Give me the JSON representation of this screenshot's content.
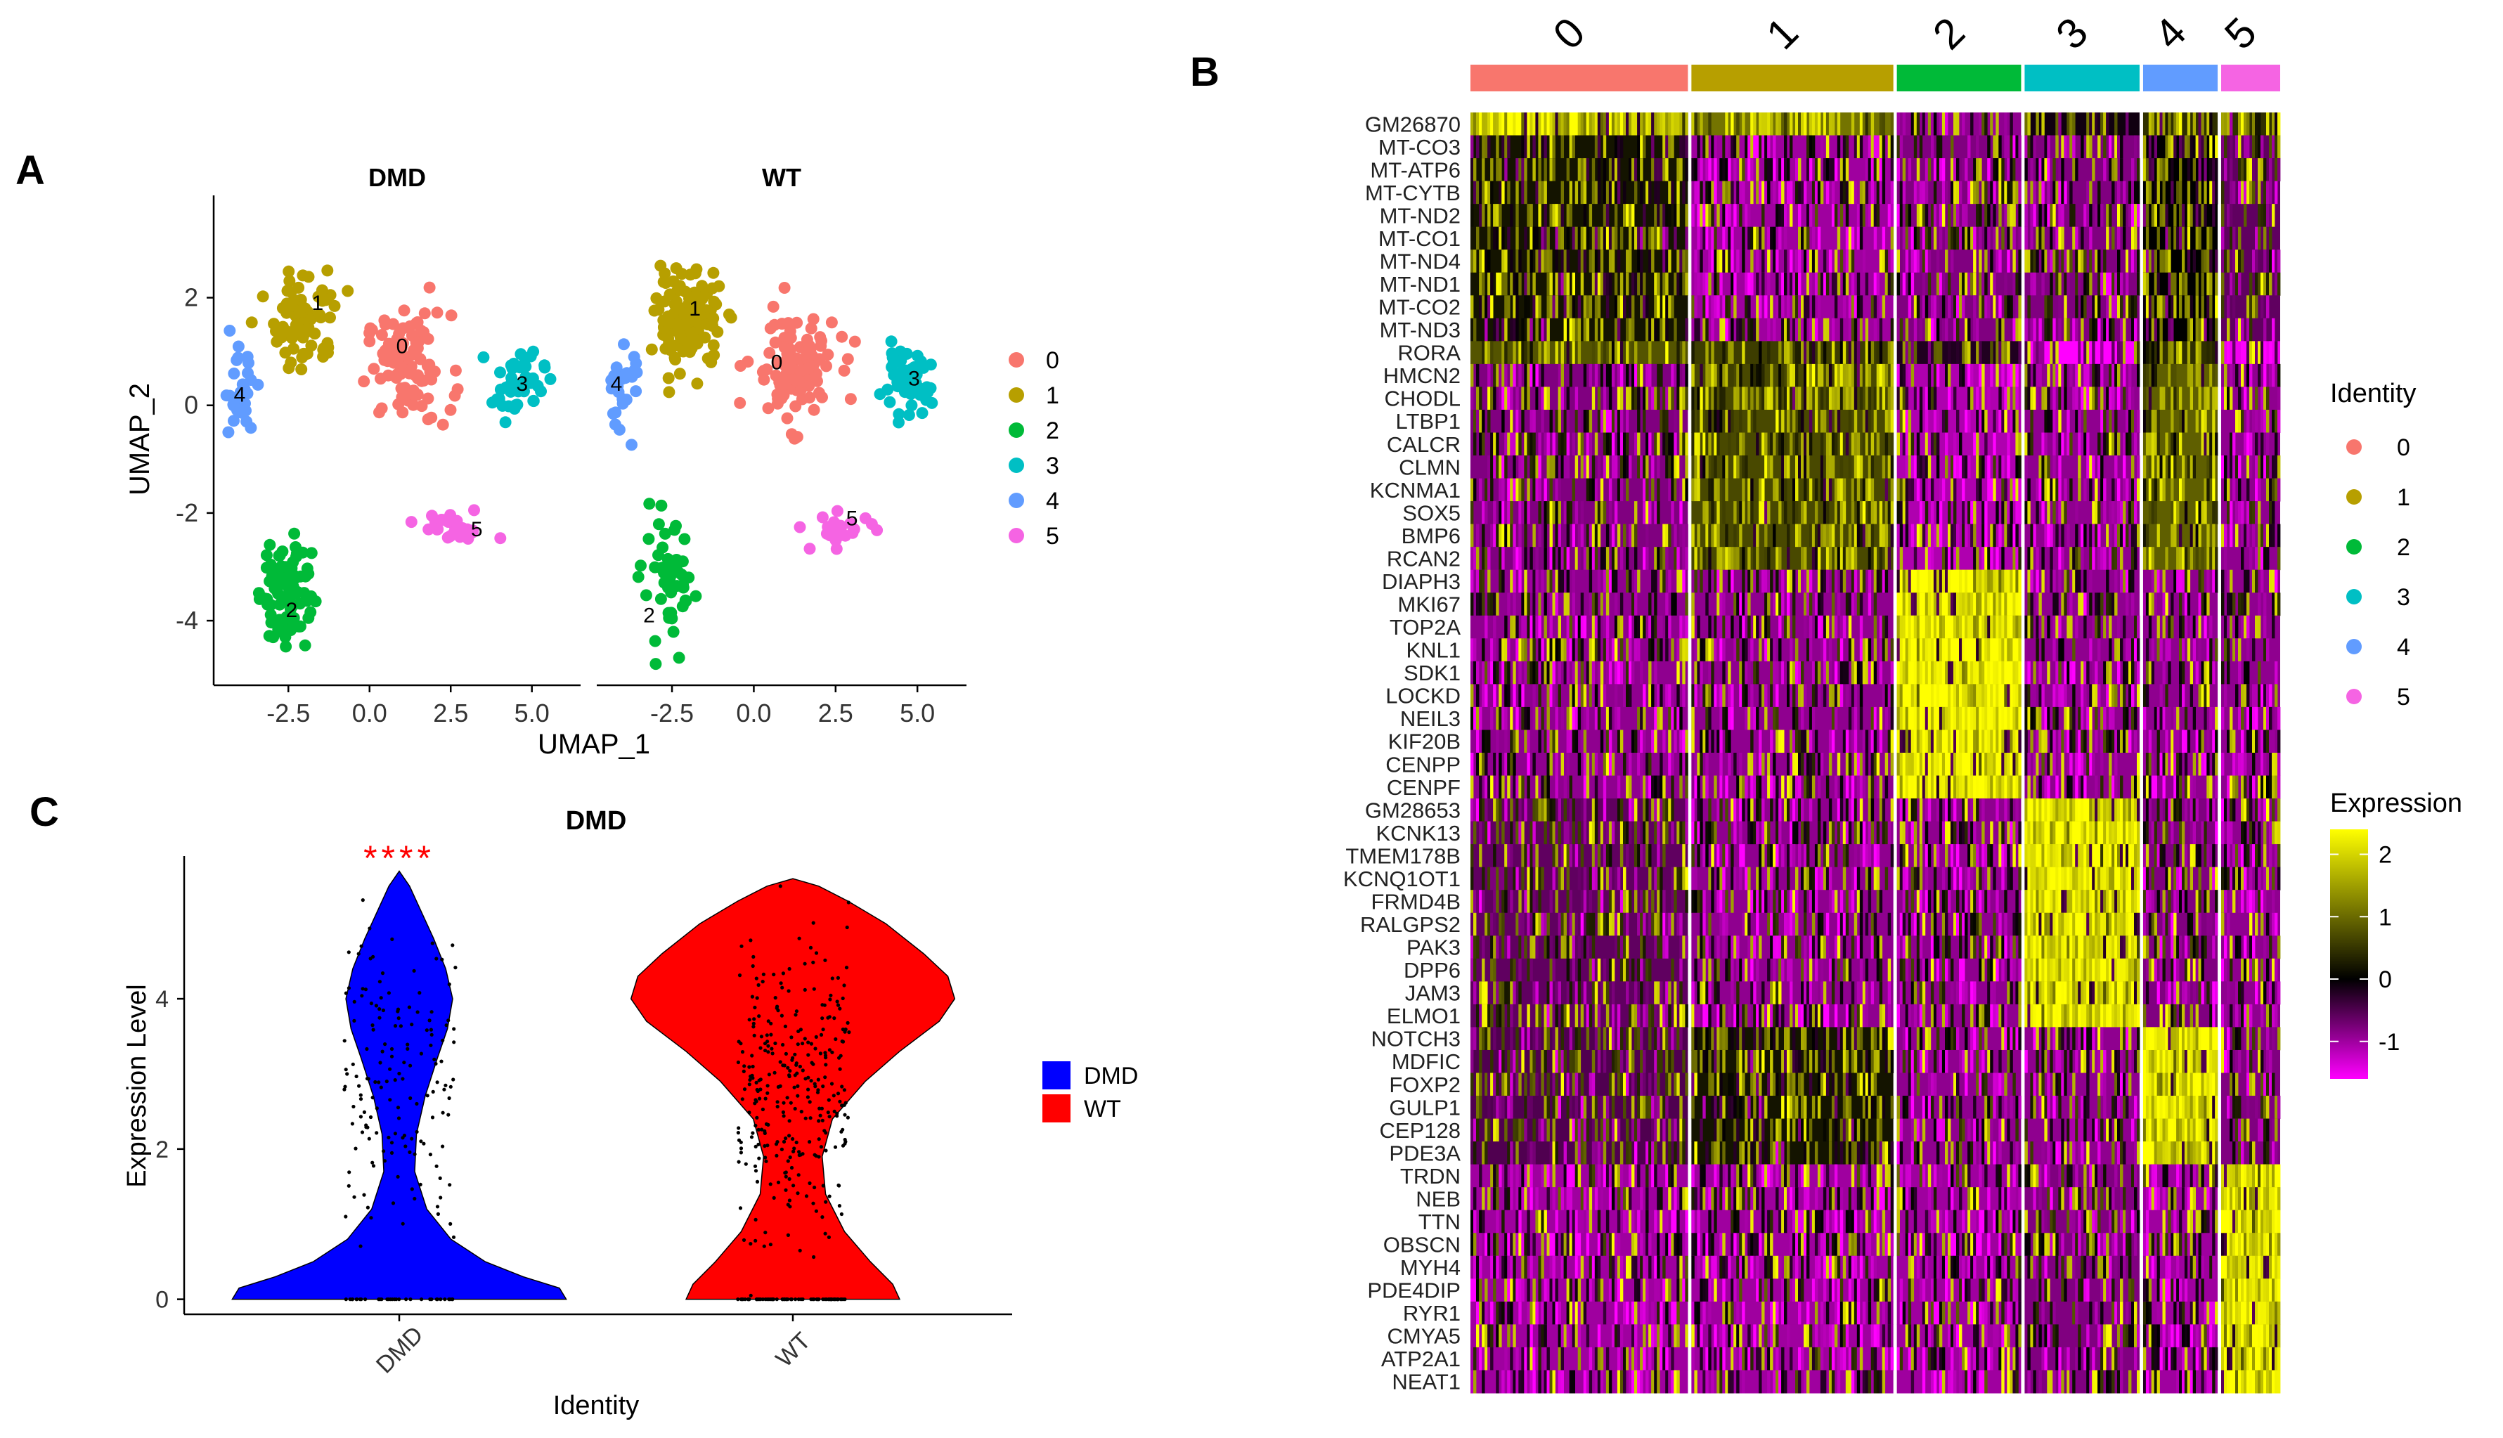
{
  "panel_letters": {
    "a": "A",
    "b": "B",
    "c": "C"
  },
  "chart_data": [
    {
      "type": "scatter",
      "panel": "A",
      "facets": [
        "DMD",
        "WT"
      ],
      "xlabel": "UMAP_1",
      "ylabel": "UMAP_2",
      "xlim": [
        -4.8,
        6.5
      ],
      "ylim": [
        -5.2,
        3.9
      ],
      "xticks": [
        -2.5,
        0.0,
        2.5,
        5.0
      ],
      "xtick_labels": [
        "-2.5",
        "0.0",
        "2.5",
        "5.0"
      ],
      "yticks": [
        2,
        0,
        -2,
        -4
      ],
      "ytick_labels": [
        "2",
        "0",
        "-2",
        "-4"
      ],
      "legend": {
        "title": "",
        "entries": [
          "0",
          "1",
          "2",
          "3",
          "4",
          "5"
        ],
        "position": "right"
      },
      "clusters": [
        {
          "id": "0",
          "color": "#F8766D",
          "center": [
            1.2,
            0.7
          ],
          "spread": [
            1.3,
            1.0
          ],
          "n": [
            95,
            110
          ]
        },
        {
          "id": "1",
          "color": "#B79F00",
          "center": [
            -2.0,
            1.6
          ],
          "spread": [
            1.0,
            0.9
          ],
          "n": [
            80,
            120
          ]
        },
        {
          "id": "2",
          "color": "#00BA38",
          "center": [
            -2.6,
            -3.4
          ],
          "spread": [
            0.8,
            1.1
          ],
          "n": [
            85,
            50
          ]
        },
        {
          "id": "3",
          "color": "#00BFC4",
          "center": [
            4.6,
            0.4
          ],
          "spread": [
            0.8,
            0.6
          ],
          "n": [
            45,
            50
          ]
        },
        {
          "id": "4",
          "color": "#619CFF",
          "center": [
            -4.0,
            0.3
          ],
          "spread": [
            0.5,
            0.8
          ],
          "n": [
            30,
            30
          ]
        },
        {
          "id": "5",
          "color": "#F564E3",
          "center": [
            2.6,
            -2.3
          ],
          "spread": [
            1.1,
            0.3
          ],
          "n": [
            30,
            25
          ]
        }
      ],
      "cluster_labels": {
        "DMD": [
          {
            "text": "0",
            "x": 1.0,
            "y": 1.1
          },
          {
            "text": "1",
            "x": -1.6,
            "y": 1.9
          },
          {
            "text": "2",
            "x": -2.4,
            "y": -3.8
          },
          {
            "text": "3",
            "x": 4.7,
            "y": 0.4
          },
          {
            "text": "4",
            "x": -4.0,
            "y": 0.2
          },
          {
            "text": "5",
            "x": 3.3,
            "y": -2.3
          }
        ],
        "WT": [
          {
            "text": "0",
            "x": 0.7,
            "y": 0.8
          },
          {
            "text": "1",
            "x": -1.8,
            "y": 1.8
          },
          {
            "text": "2",
            "x": -3.2,
            "y": -3.9
          },
          {
            "text": "3",
            "x": 4.9,
            "y": 0.5
          },
          {
            "text": "4",
            "x": -4.2,
            "y": 0.4
          },
          {
            "text": "5",
            "x": 3.0,
            "y": -2.1
          }
        ]
      }
    },
    {
      "type": "heatmap",
      "panel": "B",
      "cluster_header": [
        {
          "label": "0",
          "color": "#F8766D",
          "n_cells": 140
        },
        {
          "label": "1",
          "color": "#B79F00",
          "n_cells": 130
        },
        {
          "label": "2",
          "color": "#00BA38",
          "n_cells": 80
        },
        {
          "label": "3",
          "color": "#00BFC4",
          "n_cells": 74
        },
        {
          "label": "4",
          "color": "#619CFF",
          "n_cells": 48
        },
        {
          "label": "5",
          "color": "#F564E3",
          "n_cells": 38
        }
      ],
      "genes": [
        "GM26870",
        "MT-CO3",
        "MT-ATP6",
        "MT-CYTB",
        "MT-ND2",
        "MT-CO1",
        "MT-ND4",
        "MT-ND1",
        "MT-CO2",
        "MT-ND3",
        "RORA",
        "HMCN2",
        "CHODL",
        "LTBP1",
        "CALCR",
        "CLMN",
        "KCNMA1",
        "SOX5",
        "BMP6",
        "RCAN2",
        "DIAPH3",
        "MKI67",
        "TOP2A",
        "KNL1",
        "SDK1",
        "LOCKD",
        "NEIL3",
        "KIF20B",
        "CENPP",
        "CENPF",
        "GM28653",
        "KCNK13",
        "TMEM178B",
        "KCNQ1OT1",
        "FRMD4B",
        "RALGPS2",
        "PAK3",
        "DPP6",
        "JAM3",
        "ELMO1",
        "NOTCH3",
        "MDFIC",
        "FOXP2",
        "GULP1",
        "CEP128",
        "PDE3A",
        "TRDN",
        "NEB",
        "TTN",
        "OBSCN",
        "MYH4",
        "PDE4DIP",
        "RYR1",
        "CMYA5",
        "ATP2A1",
        "NEAT1"
      ],
      "gene_marker_cluster": [
        0,
        0,
        0,
        0,
        0,
        0,
        0,
        0,
        0,
        0,
        0,
        1,
        1,
        1,
        1,
        1,
        1,
        1,
        1,
        1,
        2,
        2,
        2,
        2,
        2,
        2,
        2,
        2,
        2,
        2,
        3,
        3,
        3,
        3,
        3,
        3,
        3,
        3,
        3,
        3,
        4,
        4,
        4,
        4,
        4,
        4,
        5,
        5,
        5,
        5,
        5,
        5,
        5,
        5,
        5,
        5
      ],
      "mean_expression": [
        [
          1.8,
          1.2,
          -0.6,
          0.2,
          0.6,
          0.6
        ],
        [
          0.4,
          -0.7,
          -0.5,
          -0.5,
          0.3,
          -0.3
        ],
        [
          0.4,
          -0.7,
          -0.5,
          -0.5,
          0.3,
          -0.3
        ],
        [
          0.4,
          -0.7,
          -0.5,
          -0.5,
          0.3,
          -0.3
        ],
        [
          0.4,
          -0.7,
          -0.5,
          -0.5,
          0.3,
          -0.3
        ],
        [
          0.4,
          -0.7,
          -0.5,
          -0.5,
          0.3,
          -0.3
        ],
        [
          0.4,
          -0.7,
          -0.5,
          -0.5,
          0.3,
          -0.3
        ],
        [
          0.4,
          -0.7,
          -0.5,
          -0.5,
          0.3,
          -0.3
        ],
        [
          0.4,
          -0.7,
          -0.5,
          -0.5,
          0.3,
          -0.3
        ],
        [
          0.4,
          -0.7,
          -0.5,
          -0.5,
          0.3,
          -0.3
        ],
        [
          0.9,
          0.7,
          0.1,
          -1.4,
          0.6,
          -1.2
        ],
        [
          -0.5,
          0.8,
          -0.8,
          -0.6,
          1.0,
          -0.6
        ],
        [
          -0.5,
          0.8,
          -0.8,
          -0.6,
          1.0,
          -0.6
        ],
        [
          -0.5,
          0.8,
          -0.8,
          -0.6,
          1.0,
          -0.6
        ],
        [
          -0.5,
          0.8,
          -0.8,
          -0.6,
          1.0,
          -0.6
        ],
        [
          -0.5,
          0.8,
          -0.8,
          -0.6,
          1.0,
          -0.6
        ],
        [
          -0.5,
          0.8,
          -0.8,
          -0.6,
          1.0,
          -0.6
        ],
        [
          -0.5,
          0.8,
          -0.8,
          -0.6,
          1.0,
          -0.6
        ],
        [
          -0.5,
          0.8,
          -0.8,
          -0.6,
          1.0,
          -0.6
        ],
        [
          -0.5,
          0.8,
          -0.8,
          -0.6,
          1.0,
          -0.6
        ],
        [
          -0.6,
          -0.6,
          2.2,
          -0.6,
          -0.6,
          -0.6
        ],
        [
          -0.6,
          -0.6,
          2.2,
          -0.6,
          -0.6,
          -0.6
        ],
        [
          -0.6,
          -0.6,
          2.2,
          -0.6,
          -0.6,
          -0.6
        ],
        [
          -0.6,
          -0.6,
          2.2,
          -0.6,
          -0.6,
          -0.6
        ],
        [
          -0.6,
          -0.6,
          2.2,
          -0.6,
          -0.6,
          -0.6
        ],
        [
          -0.6,
          -0.6,
          2.2,
          -0.6,
          -0.6,
          -0.6
        ],
        [
          -0.6,
          -0.6,
          2.2,
          -0.6,
          -0.6,
          -0.6
        ],
        [
          -0.6,
          -0.6,
          2.2,
          -0.6,
          -0.6,
          -0.6
        ],
        [
          -0.6,
          -0.6,
          2.2,
          -0.6,
          -0.6,
          -0.6
        ],
        [
          -0.6,
          -0.6,
          2.2,
          -0.6,
          -0.6,
          -0.6
        ],
        [
          -0.3,
          -0.6,
          -0.6,
          2.0,
          -0.5,
          -0.6
        ],
        [
          -0.3,
          -0.6,
          -0.6,
          2.0,
          -0.5,
          -0.6
        ],
        [
          -0.3,
          -0.6,
          -0.6,
          2.0,
          -0.5,
          -0.6
        ],
        [
          -0.3,
          -0.6,
          -0.6,
          2.0,
          -0.5,
          -0.6
        ],
        [
          -0.3,
          -0.6,
          -0.6,
          2.0,
          -0.5,
          -0.6
        ],
        [
          -0.3,
          -0.6,
          -0.6,
          2.0,
          -0.5,
          -0.6
        ],
        [
          -0.3,
          -0.6,
          -0.6,
          2.0,
          -0.5,
          -0.6
        ],
        [
          -0.3,
          -0.6,
          -0.6,
          2.0,
          -0.5,
          -0.6
        ],
        [
          -0.3,
          -0.6,
          -0.6,
          2.0,
          -0.5,
          -0.6
        ],
        [
          -0.3,
          -0.6,
          -0.6,
          2.0,
          -0.5,
          -0.6
        ],
        [
          -0.2,
          0.4,
          -0.6,
          -0.6,
          2.0,
          -0.5
        ],
        [
          -0.2,
          0.4,
          -0.6,
          -0.6,
          2.0,
          -0.5
        ],
        [
          -0.2,
          0.4,
          -0.6,
          -0.6,
          2.0,
          -0.5
        ],
        [
          -0.2,
          0.4,
          -0.6,
          -0.6,
          2.0,
          -0.5
        ],
        [
          -0.2,
          0.4,
          -0.6,
          -0.6,
          2.0,
          -0.5
        ],
        [
          -0.2,
          0.4,
          -0.6,
          -0.6,
          2.0,
          -0.5
        ],
        [
          -0.7,
          -0.7,
          -0.7,
          -0.5,
          -0.7,
          2.0
        ],
        [
          -0.7,
          -0.7,
          -0.7,
          -0.5,
          -0.7,
          2.0
        ],
        [
          -0.7,
          -0.7,
          -0.7,
          -0.5,
          -0.7,
          2.0
        ],
        [
          -0.7,
          -0.7,
          -0.7,
          -0.5,
          -0.7,
          2.0
        ],
        [
          -0.7,
          -0.7,
          -0.7,
          -0.5,
          -0.7,
          2.0
        ],
        [
          -0.7,
          -0.7,
          -0.7,
          -0.5,
          -0.7,
          2.0
        ],
        [
          -0.7,
          -0.7,
          -0.7,
          -0.5,
          -0.7,
          2.0
        ],
        [
          -0.7,
          -0.7,
          -0.7,
          -0.5,
          -0.7,
          2.0
        ],
        [
          -0.7,
          -0.7,
          -0.7,
          -0.5,
          -0.7,
          2.0
        ],
        [
          -0.7,
          -0.7,
          -0.7,
          -0.5,
          -0.7,
          2.0
        ]
      ],
      "legend_identity": {
        "title": "Identity",
        "entries": [
          "0",
          "1",
          "2",
          "3",
          "4",
          "5"
        ],
        "colors": [
          "#F8766D",
          "#B79F00",
          "#00BA38",
          "#00BFC4",
          "#619CFF",
          "#F564E3"
        ]
      },
      "legend_expression": {
        "title": "Expression",
        "colorscale": [
          "#FF00FF",
          "#000000",
          "#FFFF00"
        ],
        "range": [
          -1.6,
          2.4
        ],
        "ticks": [
          2,
          1,
          0,
          -1
        ],
        "tick_labels": [
          "2",
          "1",
          "0",
          "-1"
        ]
      }
    },
    {
      "type": "violin",
      "panel": "C",
      "title": "DMD",
      "xlabel": "Identity",
      "ylabel": "Expression Level",
      "categories": [
        "DMD",
        "WT"
      ],
      "colors": [
        "#0000FF",
        "#FF0000"
      ],
      "ylim": [
        -0.2,
        5.9
      ],
      "yticks": [
        0,
        2,
        4
      ],
      "ytick_labels": [
        "0",
        "2",
        "4"
      ],
      "significance": "****",
      "significance_color": "#FF0000",
      "legend": {
        "entries": [
          "DMD",
          "WT"
        ],
        "position": "right"
      },
      "series": [
        {
          "name": "DMD",
          "ymax": 5.7,
          "density": [
            [
              0.0,
              0.97
            ],
            [
              0.15,
              0.93
            ],
            [
              0.3,
              0.72
            ],
            [
              0.5,
              0.5
            ],
            [
              0.8,
              0.3
            ],
            [
              1.2,
              0.16
            ],
            [
              1.7,
              0.09
            ],
            [
              2.2,
              0.1
            ],
            [
              2.7,
              0.15
            ],
            [
              3.2,
              0.22
            ],
            [
              3.6,
              0.28
            ],
            [
              4.0,
              0.31
            ],
            [
              4.4,
              0.27
            ],
            [
              4.8,
              0.2
            ],
            [
              5.2,
              0.12
            ],
            [
              5.5,
              0.06
            ],
            [
              5.7,
              0.0
            ]
          ],
          "points_n": 190
        },
        {
          "name": "WT",
          "ymax": 5.6,
          "density": [
            [
              0.0,
              0.62
            ],
            [
              0.2,
              0.58
            ],
            [
              0.5,
              0.45
            ],
            [
              0.9,
              0.3
            ],
            [
              1.4,
              0.19
            ],
            [
              1.9,
              0.17
            ],
            [
              2.4,
              0.23
            ],
            [
              2.9,
              0.42
            ],
            [
              3.3,
              0.62
            ],
            [
              3.7,
              0.85
            ],
            [
              4.0,
              0.94
            ],
            [
              4.3,
              0.9
            ],
            [
              4.6,
              0.76
            ],
            [
              5.0,
              0.54
            ],
            [
              5.3,
              0.32
            ],
            [
              5.5,
              0.15
            ],
            [
              5.6,
              0.0
            ]
          ],
          "points_n": 380
        }
      ]
    }
  ]
}
